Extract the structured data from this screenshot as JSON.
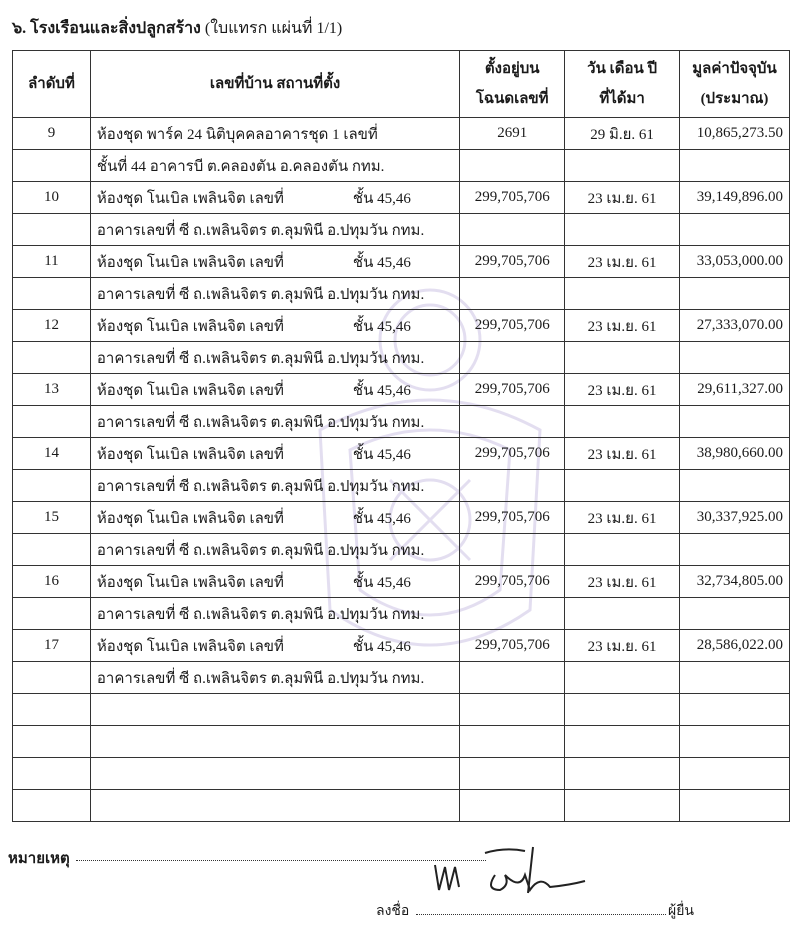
{
  "title": {
    "number": "๖. โรงเรือนและสิ่งปลูกสร้าง",
    "suffix": "(ใบแทรก แผ่นที่ 1/1)"
  },
  "table": {
    "headers": {
      "seq": "ลำดับที่",
      "address": "เลขที่บ้าน  สถานที่ตั้ง",
      "deed_1": "ตั้งอยู่บน",
      "deed_2": "โฉนดเลขที่",
      "date_1": "วัน  เดือน  ปี",
      "date_2": "ที่ได้มา",
      "value_1": "มูลค่าปัจจุบัน",
      "value_2": "(ประมาณ)"
    },
    "rows": [
      {
        "seq": "9",
        "line1": "ห้องชุด พาร์ค 24 นิติบุคคลอาคารชุด 1 เลขที่",
        "floor": "",
        "line2": "ชั้นที่ 44 อาคารบี ต.คลองตัน  อ.คลองตัน กทม.",
        "deed": "2691",
        "date": "29 มิ.ย. 61",
        "value": "10,865,273.50"
      },
      {
        "seq": "10",
        "line1": "ห้องชุด โนเบิล เพลินจิต เลขที่",
        "floor": "ชั้น 45,46",
        "line2": "อาคารเลขที่ ซี ถ.เพลินจิตร ต.ลุมพินี อ.ปทุมวัน กทม.",
        "deed": "299,705,706",
        "date": "23 เม.ย. 61",
        "value": "39,149,896.00"
      },
      {
        "seq": "11",
        "line1": "ห้องชุด โนเบิล เพลินจิต เลขที่",
        "floor": "ชั้น 45,46",
        "line2": "อาคารเลขที่ ซี ถ.เพลินจิตร ต.ลุมพินี อ.ปทุมวัน กทม.",
        "deed": "299,705,706",
        "date": "23 เม.ย. 61",
        "value": "33,053,000.00"
      },
      {
        "seq": "12",
        "line1": "ห้องชุด โนเบิล เพลินจิต เลขที่",
        "floor": "ชั้น 45,46",
        "line2": "อาคารเลขที่ ซี ถ.เพลินจิตร ต.ลุมพินี อ.ปทุมวัน กทม.",
        "deed": "299,705,706",
        "date": "23 เม.ย. 61",
        "value": "27,333,070.00"
      },
      {
        "seq": "13",
        "line1": "ห้องชุด โนเบิล เพลินจิต เลขที่",
        "floor": "ชั้น 45,46",
        "line2": "อาคารเลขที่ ซี ถ.เพลินจิตร ต.ลุมพินี อ.ปทุมวัน กทม.",
        "deed": "299,705,706",
        "date": "23 เม.ย. 61",
        "value": "29,611,327.00"
      },
      {
        "seq": "14",
        "line1": "ห้องชุด โนเบิล เพลินจิต เลขที่",
        "floor": "ชั้น 45,46",
        "line2": "อาคารเลขที่ ซี ถ.เพลินจิตร ต.ลุมพินี อ.ปทุมวัน กทม.",
        "deed": "299,705,706",
        "date": "23 เม.ย. 61",
        "value": "38,980,660.00"
      },
      {
        "seq": "15",
        "line1": "ห้องชุด โนเบิล เพลินจิต เลขที่",
        "floor": "ชั้น 45,46",
        "line2": "อาคารเลขที่ ซี ถ.เพลินจิตร ต.ลุมพินี อ.ปทุมวัน กทม.",
        "deed": "299,705,706",
        "date": "23 เม.ย. 61",
        "value": "30,337,925.00"
      },
      {
        "seq": "16",
        "line1": "ห้องชุด โนเบิล เพลินจิต เลขที่",
        "floor": "ชั้น 45,46",
        "line2": "อาคารเลขที่ ซี ถ.เพลินจิตร ต.ลุมพินี อ.ปทุมวัน กทม.",
        "deed": "299,705,706",
        "date": "23 เม.ย. 61",
        "value": "32,734,805.00"
      },
      {
        "seq": "17",
        "line1": "ห้องชุด โนเบิล เพลินจิต เลขที่",
        "floor": "ชั้น 45,46",
        "line2": "อาคารเลขที่ ซี ถ.เพลินจิตร ต.ลุมพินี อ.ปทุมวัน กทม.",
        "deed": "299,705,706",
        "date": "23 เม.ย. 61",
        "value": "28,586,022.00"
      }
    ],
    "empty_rows": 4
  },
  "footer": {
    "remark_label": "หมายเหตุ",
    "sign_label": "ลงชื่อ",
    "signer_role": "ผู้ยื่น"
  },
  "colors": {
    "seal_watermark": "#6a4fb0",
    "ink": "#1a1a1a"
  }
}
